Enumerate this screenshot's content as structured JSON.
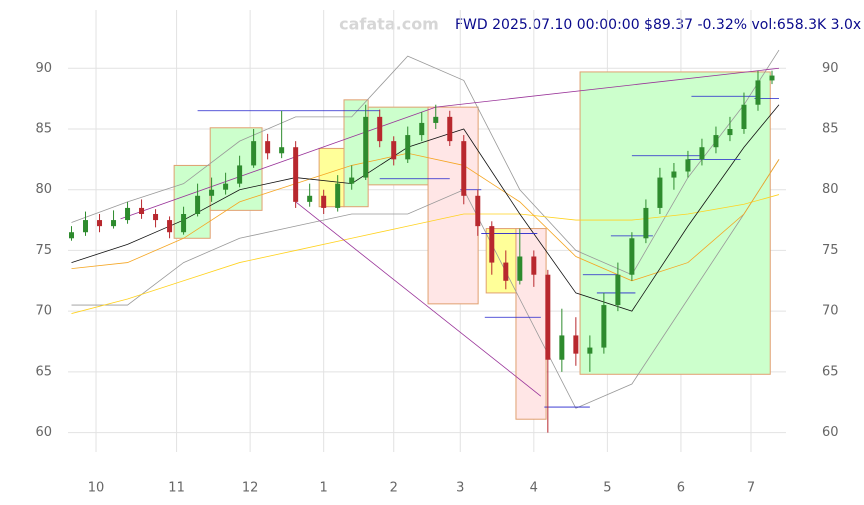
{
  "chart_data": {
    "type": "candlestick",
    "title": "FWD 2025.07.10 00:00:00 $89.37 -0.32% vol:658.3K 3.0x",
    "watermark": "cafata.com",
    "x": [
      0,
      4,
      8,
      12,
      16,
      20,
      24,
      28,
      32,
      36,
      40,
      44,
      48,
      52,
      56,
      60,
      64,
      68,
      72,
      76,
      80,
      84,
      88,
      92,
      96,
      100,
      104,
      108,
      112,
      116,
      120,
      124,
      128,
      132,
      136,
      140,
      144,
      148,
      152,
      156,
      160,
      164,
      168,
      172,
      176,
      180,
      184,
      188,
      192,
      196,
      200
    ],
    "open": [
      76.0,
      76.5,
      77.5,
      77.0,
      77.5,
      78.5,
      78.0,
      77.5,
      76.5,
      78.0,
      79.5,
      80.0,
      80.5,
      82.0,
      84.0,
      83.0,
      83.5,
      79.0,
      79.5,
      78.5,
      80.5,
      81.0,
      86.0,
      84.0,
      82.5,
      84.5,
      85.5,
      86.0,
      84.0,
      79.5,
      77.0,
      74.0,
      72.5,
      74.5,
      73.0,
      66.0,
      68.0,
      66.5,
      67.0,
      70.5,
      73.0,
      76.0,
      78.5,
      81.0,
      81.5,
      82.5,
      83.5,
      84.5,
      85.0,
      87.0,
      89.0
    ],
    "high": [
      77.0,
      78.2,
      78.0,
      78.3,
      79.0,
      79.2,
      78.4,
      77.8,
      78.6,
      80.5,
      81.0,
      81.4,
      82.8,
      85.0,
      84.6,
      86.5,
      84.0,
      80.5,
      80.0,
      81.2,
      82.0,
      87.0,
      86.6,
      84.4,
      85.2,
      86.4,
      87.0,
      86.5,
      84.5,
      80.0,
      77.4,
      75.0,
      76.8,
      75.0,
      73.4,
      70.2,
      69.5,
      68.0,
      71.5,
      74.0,
      76.5,
      79.2,
      81.8,
      82.2,
      83.2,
      84.2,
      85.2,
      86.0,
      88.0,
      89.8,
      89.8
    ],
    "low": [
      75.8,
      76.2,
      76.5,
      76.8,
      77.2,
      77.6,
      76.9,
      76.0,
      76.3,
      77.8,
      79.0,
      79.6,
      80.2,
      81.8,
      82.5,
      82.6,
      78.5,
      78.6,
      78.0,
      78.2,
      80.0,
      80.8,
      83.5,
      82.0,
      82.2,
      84.0,
      85.0,
      83.6,
      78.8,
      76.2,
      73.0,
      71.8,
      72.2,
      72.0,
      60.0,
      65.0,
      65.5,
      65.0,
      66.5,
      70.0,
      72.5,
      75.6,
      78.0,
      80.0,
      81.0,
      82.0,
      83.0,
      84.0,
      84.6,
      86.5,
      88.7
    ],
    "close": [
      76.5,
      77.5,
      77.0,
      77.5,
      78.5,
      78.0,
      77.5,
      76.5,
      78.0,
      79.5,
      80.0,
      80.5,
      82.0,
      84.0,
      83.0,
      83.5,
      79.0,
      79.5,
      78.5,
      80.5,
      81.0,
      86.0,
      84.0,
      82.5,
      84.5,
      85.5,
      86.0,
      84.0,
      79.5,
      77.0,
      74.0,
      72.5,
      74.5,
      73.0,
      66.0,
      68.0,
      66.5,
      67.0,
      70.5,
      73.0,
      76.0,
      78.5,
      81.0,
      81.5,
      82.5,
      83.5,
      84.5,
      85.0,
      87.0,
      89.0,
      89.4
    ],
    "up_color": "#2e8b2e",
    "down_color": "#b8282e",
    "overlay_x": [
      0,
      16,
      32,
      48,
      64,
      80,
      96,
      112,
      128,
      144,
      160,
      176,
      192,
      202
    ],
    "overlays": [
      {
        "color": "#999999",
        "values": [
          77.3,
          79,
          80.5,
          84,
          86,
          86,
          91,
          89,
          80,
          75,
          73,
          81,
          87,
          91.5
        ]
      },
      {
        "color": "#999999",
        "values": [
          70.5,
          70.5,
          74,
          76,
          77,
          78,
          78,
          80,
          71,
          62,
          64,
          71,
          78,
          82.5
        ]
      },
      {
        "color": "#ffd21f",
        "values": [
          69.8,
          71,
          72.5,
          74,
          75,
          76,
          77,
          78,
          78,
          77.5,
          77.5,
          78,
          78.8,
          79.6
        ]
      },
      {
        "color": "#f5a623",
        "values": [
          73.5,
          74,
          76,
          79,
          80.5,
          82,
          83,
          82,
          79,
          74.5,
          72.5,
          74,
          78,
          82.5
        ]
      },
      {
        "color": "#111111",
        "values": [
          74,
          75.5,
          77.5,
          80,
          81,
          80.5,
          83.5,
          85,
          78,
          71.5,
          70,
          77,
          83.5,
          87
        ]
      }
    ],
    "regions": [
      {
        "x": [
          29.3,
          39.6
        ],
        "y": [
          76.0,
          82.0
        ],
        "color": "#ccffcc"
      },
      {
        "x": [
          39.6,
          54.4
        ],
        "y": [
          78.3,
          85.1
        ],
        "color": "#ccffcc"
      },
      {
        "x": [
          70.7,
          77.8
        ],
        "y": [
          78.6,
          83.4
        ],
        "color": "#ffff99"
      },
      {
        "x": [
          77.8,
          84.7
        ],
        "y": [
          78.6,
          87.4
        ],
        "color": "#ccffcc"
      },
      {
        "x": [
          84.7,
          102.4
        ],
        "y": [
          80.4,
          86.8
        ],
        "color": "#ccffcc"
      },
      {
        "x": [
          101.8,
          116.1
        ],
        "y": [
          70.6,
          86.8
        ],
        "color": "#ffe6e6"
      },
      {
        "x": [
          118.4,
          126.9
        ],
        "y": [
          71.5,
          76.8
        ],
        "color": "#ffff99"
      },
      {
        "x": [
          126.9,
          135.5
        ],
        "y": [
          61.1,
          76.8
        ],
        "color": "#ffe6e6"
      },
      {
        "x": [
          145.2,
          199.5
        ],
        "y": [
          64.8,
          89.7
        ],
        "color": "#ccffcc"
      }
    ],
    "trend_lines": [
      {
        "x": [
          14,
          104,
          202
        ],
        "y": [
          77.6,
          86.8,
          90.0
        ],
        "color": "#993399"
      },
      {
        "x": [
          64,
          134
        ],
        "y": [
          79.0,
          63.0
        ],
        "color": "#993399"
      }
    ],
    "levels": [
      {
        "x": [
          36,
          88
        ],
        "y": 86.5
      },
      {
        "x": [
          88,
          108
        ],
        "y": 80.9
      },
      {
        "x": [
          111,
          117
        ],
        "y": 80.0
      },
      {
        "x": [
          117,
          133
        ],
        "y": 76.4
      },
      {
        "x": [
          118,
          134
        ],
        "y": 69.5
      },
      {
        "x": [
          135,
          148
        ],
        "y": 62.1
      },
      {
        "x": [
          146,
          156
        ],
        "y": 73.0
      },
      {
        "x": [
          150,
          161
        ],
        "y": 71.5
      },
      {
        "x": [
          154,
          166
        ],
        "y": 76.2
      },
      {
        "x": [
          160,
          180
        ],
        "y": 82.8
      },
      {
        "x": [
          176,
          191
        ],
        "y": 82.5
      },
      {
        "x": [
          177,
          196
        ],
        "y": 87.7
      },
      {
        "x": [
          195,
          202
        ],
        "y": 87.5
      }
    ],
    "level_color": "#2222cc",
    "xlim": [
      -1,
      204
    ],
    "ylim": [
      58.4,
      94.8
    ],
    "xticks": [
      {
        "value": 7,
        "label": "10"
      },
      {
        "value": 30,
        "label": "11"
      },
      {
        "value": 51,
        "label": "12"
      },
      {
        "value": 72,
        "label": "1"
      },
      {
        "value": 92,
        "label": "2"
      },
      {
        "value": 111,
        "label": "3"
      },
      {
        "value": 132,
        "label": "4"
      },
      {
        "value": 153,
        "label": "5"
      },
      {
        "value": 174,
        "label": "6"
      },
      {
        "value": 194,
        "label": "7"
      }
    ],
    "yticks": [
      60,
      65,
      70,
      75,
      80,
      85,
      90
    ],
    "grid": true
  }
}
